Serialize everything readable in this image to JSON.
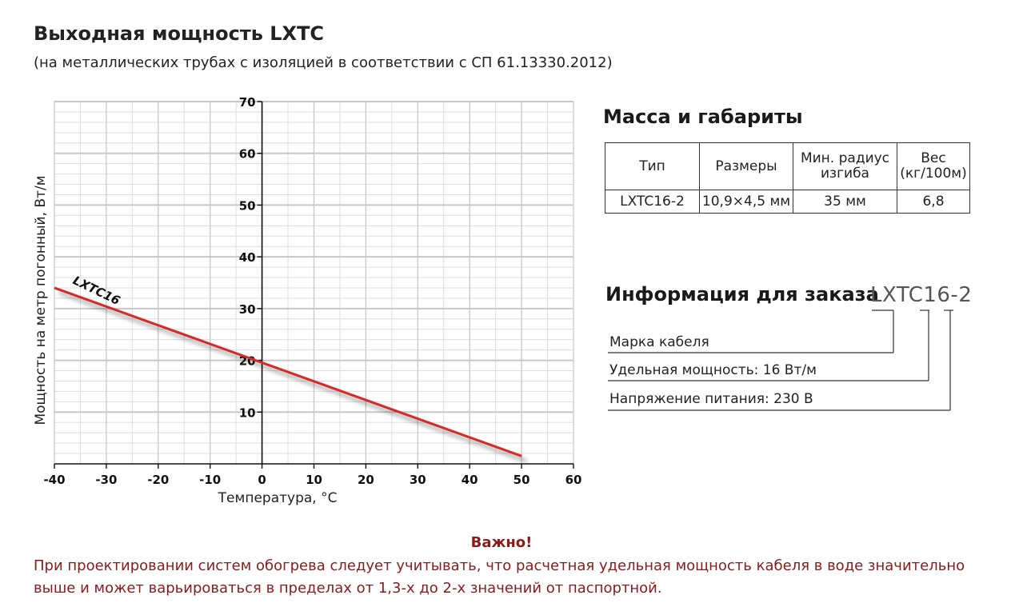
{
  "header": {
    "title": "Выходная мощность LXTC",
    "subtitle": "(на металлических трубах с изоляцией в соответствии с СП 61.13330.2012)"
  },
  "chart_data": {
    "type": "line",
    "xlabel": "Температура, °C",
    "ylabel": "Мощность на метр погонный, Вт/м",
    "xlim": [
      -40,
      60
    ],
    "ylim": [
      0,
      70
    ],
    "x_ticks": [
      -40,
      -30,
      -20,
      -10,
      0,
      10,
      20,
      30,
      40,
      50,
      60
    ],
    "y_ticks": [
      10,
      20,
      30,
      40,
      50,
      60,
      70
    ],
    "grid": true,
    "series": [
      {
        "name": "LXTC16",
        "x": [
          -40,
          50
        ],
        "y": [
          34,
          1.5
        ],
        "color": "#d42a2a"
      }
    ]
  },
  "specs": {
    "title": "Масса и габариты",
    "headers": [
      "Тип",
      "Размеры",
      "Мин. радиус изгиба",
      "Вес (кг/100м)"
    ],
    "row": [
      "LXTC16-2",
      "10,9×4,5 мм",
      "35 мм",
      "6,8"
    ]
  },
  "order": {
    "title": "Информация для заказа",
    "code": "LXTC16-2",
    "items": [
      "Марка кабеля",
      "Удельная мощность: 16 Вт/м",
      "Напряжение питания: 230 В"
    ]
  },
  "note": {
    "heading": "Важно!",
    "text": "При проектировании систем обогрева следует учитывать, что расчетная удельная мощность кабеля в воде значительно выше и может варьироваться в пределах от 1,3-х до 2-х значений от паспортной."
  }
}
